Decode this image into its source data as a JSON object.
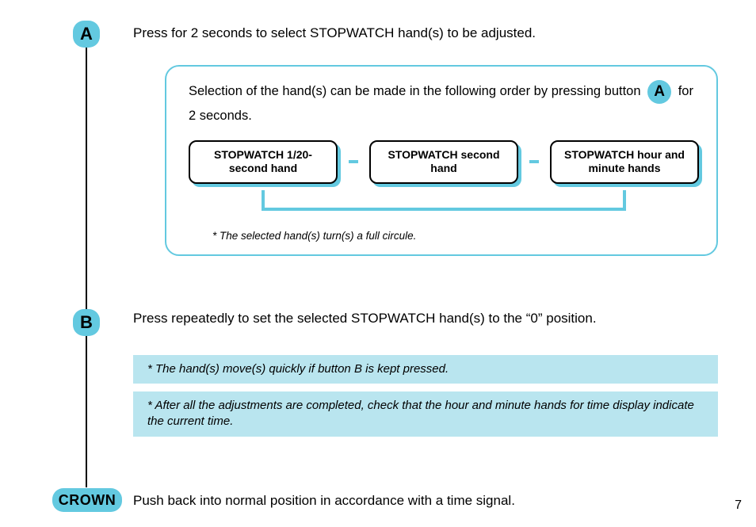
{
  "colors": {
    "accent": "#63c9e0",
    "note_bg": "#b9e5ef",
    "text": "#000000",
    "bg": "#ffffff"
  },
  "badges": {
    "a": "A",
    "b": "B",
    "crown": "CROWN",
    "inline_a": "A"
  },
  "step_a": "Press for 2 seconds to select STOPWATCH hand(s) to be adjusted.",
  "selection_intro_pre": "Selection of the hand(s) can be made in the following order by pressing button",
  "selection_intro_post": "for 2 seconds.",
  "hands": [
    "STOPWATCH 1/20-second hand",
    "STOPWATCH second hand",
    "STOPWATCH hour and minute hands"
  ],
  "cycle_note": "*  The selected hand(s) turn(s) a full circule.",
  "step_b": "Press repeatedly to set the selected STOPWATCH hand(s) to the “0” position.",
  "note_b1": "* The hand(s) move(s) quickly if button B is kept pressed.",
  "note_b2": "* After all the adjustments are completed, check that the hour and minute hands for time display indicate the current time.",
  "step_crown": "Push back into normal position in accordance with a time signal.",
  "page_number": "7"
}
